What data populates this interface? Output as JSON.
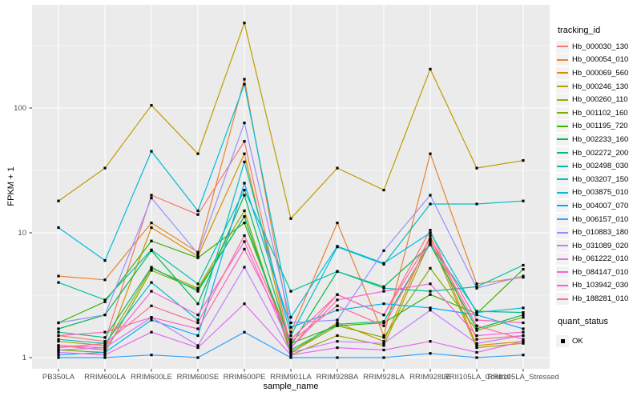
{
  "figure": {
    "y_axis": {
      "title": "FPKM + 1"
    },
    "x_axis": {
      "title": "sample_name"
    },
    "legend": {
      "tracking_title": "tracking_id",
      "quant_title": "quant_status",
      "quant_items": [
        {
          "label": "OK",
          "marker": "black-square"
        }
      ]
    },
    "colors": {
      "panel_background": "#EBEBEB",
      "gridline": "#FFFFFF",
      "axis_text": "#4D4D4D",
      "tick_mark": "#333333",
      "legend_key_background": "#F2F2F2",
      "point_marker": "#000000"
    }
  },
  "chart_data": {
    "type": "line",
    "title": "",
    "xlabel": "sample_name",
    "ylabel": "FPKM + 1",
    "y_scale": "log10",
    "ylim": [
      0.85,
      650
    ],
    "y_ticks": [
      1,
      10,
      100
    ],
    "y_minor_ticks": [
      3.162,
      31.62,
      316.2
    ],
    "grid": true,
    "legend_position": "right",
    "point_marker": "filled-black-square",
    "quant_status_all": "OK",
    "categories": [
      "PB350LA",
      "RRIM600LA",
      "RRIM600LE",
      "RRIM600SE",
      "RRIM600PE",
      "RRIM901LA",
      "RRIM928BA",
      "RRIM928LA",
      "RRIM928LE",
      "RRII105LA_Control",
      "RRII105LA_Stressed"
    ],
    "series": [
      {
        "name": "Hb_000030_130",
        "color": "#F8766D",
        "quant_status": "OK",
        "values": [
          1.5,
          1.35,
          20,
          14,
          54,
          1.2,
          3.2,
          2.2,
          10.5,
          1.4,
          1.5
        ]
      },
      {
        "name": "Hb_000054_010",
        "color": "#EA8331",
        "quant_status": "OK",
        "values": [
          4.5,
          4.2,
          12,
          7.0,
          170,
          1.6,
          12,
          1.5,
          43,
          3.9,
          4.4
        ]
      },
      {
        "name": "Hb_000069_560",
        "color": "#D89000",
        "quant_status": "OK",
        "values": [
          1.25,
          1.15,
          11,
          6.5,
          43,
          1.1,
          1.9,
          1.35,
          9.5,
          1.25,
          1.35
        ]
      },
      {
        "name": "Hb_000246_130",
        "color": "#C09B00",
        "quant_status": "OK",
        "values": [
          18,
          33,
          105,
          43,
          480,
          13,
          33,
          22,
          205,
          33,
          38
        ]
      },
      {
        "name": "Hb_000260_110",
        "color": "#A3A500",
        "quant_status": "OK",
        "values": [
          1.35,
          1.25,
          5.2,
          3.6,
          15,
          1.05,
          1.5,
          1.25,
          8.7,
          1.2,
          1.3
        ]
      },
      {
        "name": "Hb_001102_160",
        "color": "#7CAE00",
        "quant_status": "OK",
        "values": [
          1.15,
          1.1,
          5.0,
          3.5,
          13.5,
          1.1,
          1.8,
          1.45,
          5.2,
          1.65,
          2.1
        ]
      },
      {
        "name": "Hb_001195_720",
        "color": "#39B600",
        "quant_status": "OK",
        "values": [
          1.9,
          2.8,
          8.6,
          6.3,
          12,
          1.3,
          1.8,
          1.9,
          3.2,
          2.25,
          5.1
        ]
      },
      {
        "name": "Hb_002233_160",
        "color": "#00BB4E",
        "quant_status": "OK",
        "values": [
          1.7,
          2.2,
          7.2,
          2.7,
          20,
          1.25,
          4.9,
          3.7,
          8.0,
          1.7,
          2.2
        ]
      },
      {
        "name": "Hb_002272_200",
        "color": "#00BF7D",
        "quant_status": "OK",
        "values": [
          1.6,
          1.45,
          5.3,
          3.4,
          13.5,
          1.15,
          1.85,
          1.95,
          8.2,
          2.35,
          2.3
        ]
      },
      {
        "name": "Hb_002498_030",
        "color": "#00C1A3",
        "quant_status": "OK",
        "values": [
          4.0,
          2.9,
          7.3,
          3.9,
          22,
          3.4,
          4.9,
          3.6,
          3.4,
          3.7,
          5.5
        ]
      },
      {
        "name": "Hb_003207_150",
        "color": "#00BFC4",
        "quant_status": "OK",
        "values": [
          1.4,
          1.3,
          4.0,
          2.0,
          37,
          1.5,
          7.7,
          5.6,
          17,
          17,
          18
        ]
      },
      {
        "name": "Hb_003875_010",
        "color": "#00BAE0",
        "quant_status": "OK",
        "values": [
          11,
          6.0,
          45,
          15,
          155,
          2.1,
          7.8,
          5.7,
          10,
          2.3,
          2.5
        ]
      },
      {
        "name": "Hb_004007_070",
        "color": "#00B0F6",
        "quant_status": "OK",
        "values": [
          1.05,
          1.1,
          2.0,
          1.5,
          25,
          1.75,
          2.4,
          2.7,
          2.5,
          2.2,
          1.7
        ]
      },
      {
        "name": "Hb_006157_010",
        "color": "#35A2FF",
        "quant_status": "OK",
        "values": [
          1.0,
          1.0,
          1.05,
          1.0,
          1.6,
          1.0,
          1.0,
          1.0,
          1.08,
          1.0,
          1.05
        ]
      },
      {
        "name": "Hb_010883_180",
        "color": "#9590FF",
        "quant_status": "OK",
        "values": [
          1.9,
          2.2,
          19,
          6.8,
          76,
          1.9,
          2.0,
          7.2,
          20,
          3.6,
          4.5
        ]
      },
      {
        "name": "Hb_031089_020",
        "color": "#C77CFF",
        "quant_status": "OK",
        "values": [
          1.15,
          1.2,
          2.1,
          1.25,
          5.3,
          1.1,
          1.35,
          1.3,
          2.4,
          1.3,
          1.5
        ]
      },
      {
        "name": "Hb_061222_010",
        "color": "#E76BF3",
        "quant_status": "OK",
        "values": [
          1.1,
          1.05,
          1.6,
          1.2,
          2.7,
          1.05,
          1.2,
          1.15,
          1.35,
          1.1,
          1.35
        ]
      },
      {
        "name": "Hb_084147_010",
        "color": "#FA62DB",
        "quant_status": "OK",
        "values": [
          1.25,
          1.2,
          3.4,
          2.2,
          8.5,
          1.2,
          2.9,
          3.4,
          3.9,
          1.5,
          1.6
        ]
      },
      {
        "name": "Hb_103942_030",
        "color": "#FF62BC",
        "quant_status": "OK",
        "values": [
          1.5,
          1.6,
          2.1,
          1.7,
          7.4,
          1.4,
          3.2,
          2.2,
          9.0,
          2.0,
          1.9
        ]
      },
      {
        "name": "Hb_188281_010",
        "color": "#FF6A98",
        "quant_status": "OK",
        "values": [
          1.2,
          1.3,
          2.6,
          1.9,
          9.5,
          1.35,
          2.6,
          1.8,
          8.5,
          1.8,
          1.4
        ]
      }
    ]
  }
}
